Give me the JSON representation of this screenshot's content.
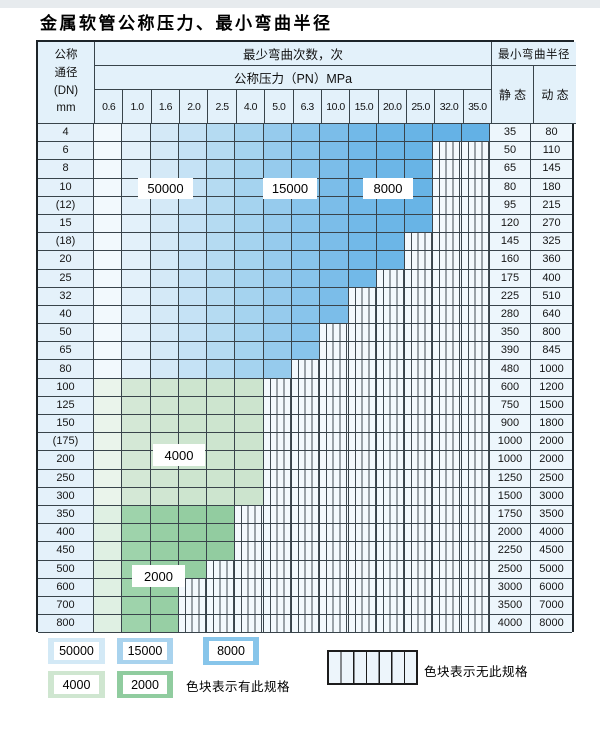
{
  "title": "金属软管公称压力、最小弯曲半径",
  "table": {
    "header": {
      "dn_lines": [
        "公称",
        "通径",
        "(DN)",
        "mm"
      ],
      "cycles": "最少弯曲次数，次",
      "pressure": "公称压力（PN）MPa",
      "pressure_cols": [
        "0.6",
        "1.0",
        "1.6",
        "2.0",
        "2.5",
        "4.0",
        "5.0",
        "6.3",
        "10.0",
        "15.0",
        "20.0",
        "25.0",
        "32.0",
        "35.0"
      ],
      "radius": "最小弯曲半径",
      "static": "静 态",
      "dynamic": "动 态"
    },
    "rows": [
      {
        "dn": "4",
        "band": "blue",
        "colored": 14,
        "static": "35",
        "dynamic": "80"
      },
      {
        "dn": "6",
        "band": "blue",
        "colored": 12,
        "static": "50",
        "dynamic": "110"
      },
      {
        "dn": "8",
        "band": "blue",
        "colored": 12,
        "static": "65",
        "dynamic": "145"
      },
      {
        "dn": "10",
        "band": "blue",
        "colored": 12,
        "static": "80",
        "dynamic": "180"
      },
      {
        "dn": "(12)",
        "band": "blue",
        "colored": 12,
        "static": "95",
        "dynamic": "215"
      },
      {
        "dn": "15",
        "band": "blue",
        "colored": 12,
        "static": "120",
        "dynamic": "270"
      },
      {
        "dn": "(18)",
        "band": "blue",
        "colored": 11,
        "static": "145",
        "dynamic": "325"
      },
      {
        "dn": "20",
        "band": "blue",
        "colored": 11,
        "static": "160",
        "dynamic": "360"
      },
      {
        "dn": "25",
        "band": "blue",
        "colored": 10,
        "static": "175",
        "dynamic": "400"
      },
      {
        "dn": "32",
        "band": "blue",
        "colored": 9,
        "static": "225",
        "dynamic": "510"
      },
      {
        "dn": "40",
        "band": "blue",
        "colored": 9,
        "static": "280",
        "dynamic": "640"
      },
      {
        "dn": "50",
        "band": "blue",
        "colored": 8,
        "static": "350",
        "dynamic": "800"
      },
      {
        "dn": "65",
        "band": "blue",
        "colored": 8,
        "static": "390",
        "dynamic": "845"
      },
      {
        "dn": "80",
        "band": "blue",
        "colored": 7,
        "static": "480",
        "dynamic": "1000"
      },
      {
        "dn": "100",
        "band": "green_light",
        "colored": 6,
        "static": "600",
        "dynamic": "1200"
      },
      {
        "dn": "125",
        "band": "green_light",
        "colored": 6,
        "static": "750",
        "dynamic": "1500"
      },
      {
        "dn": "150",
        "band": "green_light",
        "colored": 6,
        "static": "900",
        "dynamic": "1800"
      },
      {
        "dn": "(175)",
        "band": "green_light",
        "colored": 6,
        "static": "1000",
        "dynamic": "2000"
      },
      {
        "dn": "200",
        "band": "green_light",
        "colored": 6,
        "static": "1000",
        "dynamic": "2000"
      },
      {
        "dn": "250",
        "band": "green_light",
        "colored": 6,
        "static": "1250",
        "dynamic": "2500"
      },
      {
        "dn": "300",
        "band": "green_light",
        "colored": 6,
        "static": "1500",
        "dynamic": "3000"
      },
      {
        "dn": "350",
        "band": "green_dark",
        "colored": 5,
        "static": "1750",
        "dynamic": "3500"
      },
      {
        "dn": "400",
        "band": "green_dark",
        "colored": 5,
        "static": "2000",
        "dynamic": "4000"
      },
      {
        "dn": "450",
        "band": "green_dark",
        "colored": 5,
        "static": "2250",
        "dynamic": "4500"
      },
      {
        "dn": "500",
        "band": "green_dark",
        "colored": 4,
        "static": "2500",
        "dynamic": "5000"
      },
      {
        "dn": "600",
        "band": "green_dark",
        "colored": 3,
        "static": "3000",
        "dynamic": "6000"
      },
      {
        "dn": "700",
        "band": "green_dark",
        "colored": 3,
        "static": "3500",
        "dynamic": "7000"
      },
      {
        "dn": "800",
        "band": "green_dark",
        "colored": 3,
        "static": "4000",
        "dynamic": "8000"
      }
    ]
  },
  "zone_labels": {
    "cycles_50000": "50000",
    "cycles_15000": "15000",
    "cycles_8000": "8000",
    "cycles_4000": "4000",
    "cycles_2000": "2000"
  },
  "legend": {
    "items": [
      {
        "label": "50000",
        "color": "#d3e9f6"
      },
      {
        "label": "15000",
        "color": "#a9d3ee"
      },
      {
        "label": "8000",
        "color": "#87c5ea"
      },
      {
        "label": "4000",
        "color": "#cfe6d0"
      },
      {
        "label": "2000",
        "color": "#90cc9f"
      }
    ],
    "has_text": "色块表示有此规格",
    "none_text": "色块表示无此规格"
  },
  "palette": {
    "blue": [
      "#f2f9fd",
      "#e3f1fa",
      "#d4e9f7",
      "#c5e2f5",
      "#b5dbf2",
      "#a5d3ef",
      "#96cbed",
      "#88c4eb",
      "#7bbde9",
      "#72b9e8",
      "#6cb6e7",
      "#68b4e6",
      "#65b2e6",
      "#63b1e5"
    ],
    "green_light": [
      "#eaf4eb",
      "#d4e8d6",
      "#d0e6d2",
      "#cde5cf",
      "#cde5cf",
      "#cce4ce"
    ],
    "green_dark": [
      "#dff0e3",
      "#9ed3ab",
      "#97cfa4",
      "#94cda1",
      "#92cca0"
    ],
    "header_bg": "#e3f1fa",
    "grid_line": "#39444b"
  }
}
